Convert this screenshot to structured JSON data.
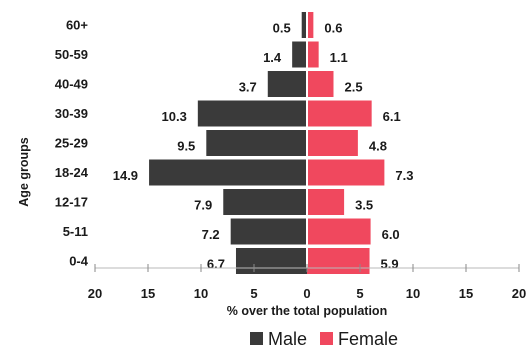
{
  "chart_data": {
    "type": "bar",
    "orientation": "horizontal",
    "layout": "population-pyramid",
    "categories": [
      "60+",
      "50-59",
      "40-49",
      "30-39",
      "25-29",
      "18-24",
      "12-17",
      "5-11",
      "0-4"
    ],
    "series": [
      {
        "name": "Male",
        "color": "#3a3a3a",
        "side": "left",
        "values": [
          0.5,
          1.4,
          3.7,
          10.3,
          9.5,
          14.9,
          7.9,
          7.2,
          6.7
        ],
        "labels": [
          "0.5",
          "1.4",
          "3.7",
          "10.3",
          "9.5",
          "14.9",
          "7.9",
          "7.2",
          "6.7"
        ]
      },
      {
        "name": "Female",
        "color": "#f0485e",
        "side": "right",
        "values": [
          0.6,
          1.1,
          2.5,
          6.1,
          4.8,
          7.3,
          3.5,
          6.0,
          5.9
        ],
        "labels": [
          "0.6",
          "1.1",
          "2.5",
          "6.1",
          "4.8",
          "7.3",
          "3.5",
          "6.0",
          "5.9"
        ]
      }
    ],
    "xlabel": "% over the total population",
    "ylabel": "Age groups",
    "xlim": [
      -20,
      20
    ],
    "xticks": [
      -20,
      -15,
      -10,
      -5,
      0,
      5,
      10,
      15,
      20
    ],
    "xtick_labels": [
      "20",
      "15",
      "10",
      "5",
      "0",
      "5",
      "10",
      "15",
      "20"
    ],
    "grid": false,
    "legend_position": "bottom-center"
  }
}
